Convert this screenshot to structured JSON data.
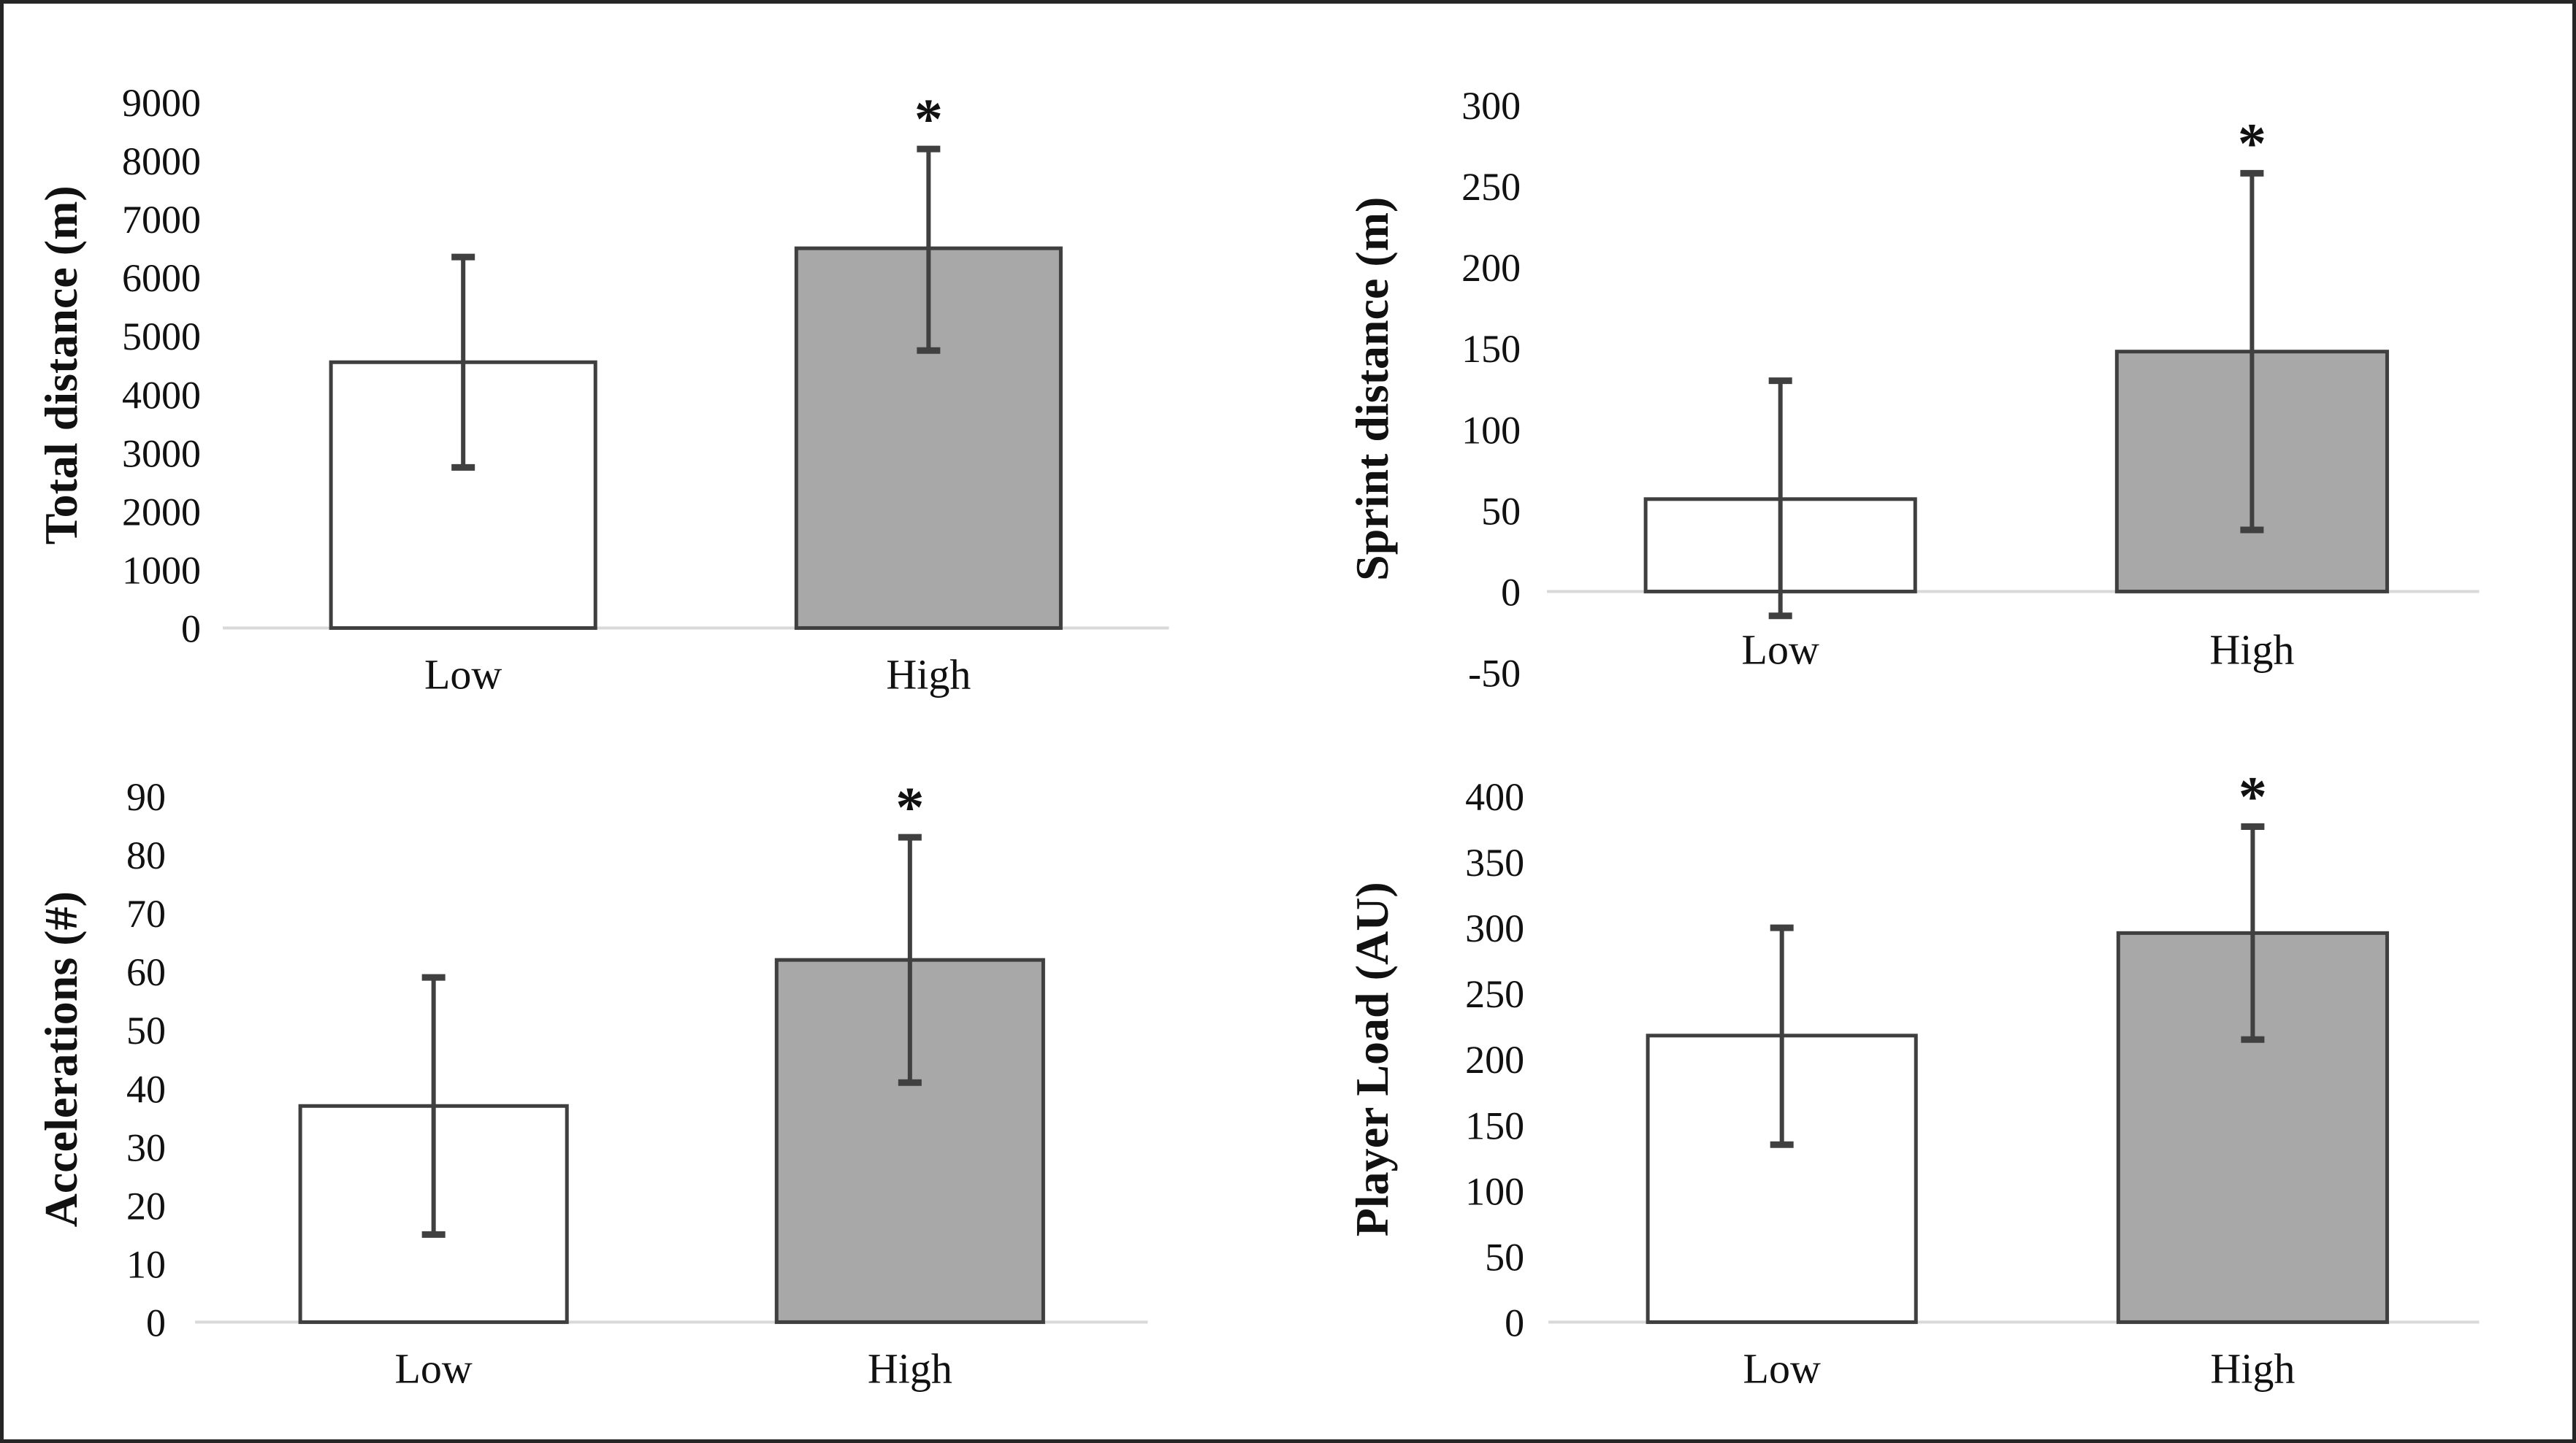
{
  "figure": {
    "background": "#ffffff",
    "border_color": "#262626",
    "bar_fills": [
      "#ffffff",
      "#a8a8a8"
    ],
    "bar_border_color": "#3f3f3f",
    "error_bar_color": "#404040",
    "axis_line_color": "#d9d9d9",
    "text_color": "#111111",
    "significance_marker": "*"
  },
  "chart_data": [
    {
      "type": "bar",
      "panel": "top-left",
      "title": "",
      "xlabel": "",
      "ylabel": "Total distance (m)",
      "categories": [
        "Low",
        "High"
      ],
      "values": [
        4550,
        6500
      ],
      "error_low": [
        2750,
        4750
      ],
      "error_high": [
        6350,
        8200
      ],
      "significant": [
        false,
        true
      ],
      "ylim": [
        0,
        9000
      ],
      "yticks": [
        0,
        1000,
        2000,
        3000,
        4000,
        5000,
        6000,
        7000,
        8000,
        9000
      ],
      "grid": false,
      "legend": "none"
    },
    {
      "type": "bar",
      "panel": "top-right",
      "title": "",
      "xlabel": "",
      "ylabel": "Sprint distance (m)",
      "categories": [
        "Low",
        "High"
      ],
      "values": [
        57,
        148
      ],
      "error_low": [
        -15,
        38
      ],
      "error_high": [
        130,
        258
      ],
      "significant": [
        false,
        true
      ],
      "ylim": [
        -50,
        300
      ],
      "yticks": [
        -50,
        0,
        50,
        100,
        150,
        200,
        250,
        300
      ],
      "grid": false,
      "legend": "none"
    },
    {
      "type": "bar",
      "panel": "bottom-left",
      "title": "",
      "xlabel": "",
      "ylabel": "Accelerations (#)",
      "categories": [
        "Low",
        "High"
      ],
      "values": [
        37,
        62
      ],
      "error_low": [
        15,
        41
      ],
      "error_high": [
        59,
        83
      ],
      "significant": [
        false,
        true
      ],
      "ylim": [
        0,
        90
      ],
      "yticks": [
        0,
        10,
        20,
        30,
        40,
        50,
        60,
        70,
        80,
        90
      ],
      "grid": false,
      "legend": "none"
    },
    {
      "type": "bar",
      "panel": "bottom-right",
      "title": "",
      "xlabel": "",
      "ylabel": "Player Load (AU)",
      "categories": [
        "Low",
        "High"
      ],
      "values": [
        218,
        296
      ],
      "error_low": [
        135,
        215
      ],
      "error_high": [
        300,
        377
      ],
      "significant": [
        false,
        true
      ],
      "ylim": [
        0,
        400
      ],
      "yticks": [
        0,
        50,
        100,
        150,
        200,
        250,
        300,
        350,
        400
      ],
      "grid": false,
      "legend": "none"
    }
  ]
}
